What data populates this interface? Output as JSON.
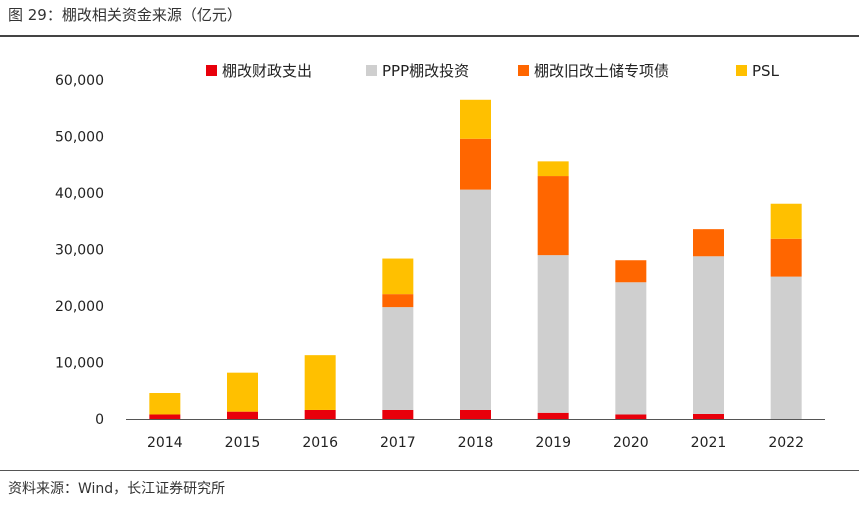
{
  "header": {
    "title": "图 29：棚改相关资金来源（亿元）"
  },
  "footer": {
    "source": "资料来源：Wind，长江证券研究所"
  },
  "chart_data": {
    "type": "bar",
    "stacked": true,
    "title": "图 29：棚改相关资金来源（亿元）",
    "xlabel": "",
    "ylabel": "",
    "ylim": [
      0,
      60000
    ],
    "yticks": [
      0,
      10000,
      20000,
      30000,
      40000,
      50000,
      60000
    ],
    "ytick_labels": [
      "0",
      "10,000",
      "20,000",
      "30,000",
      "40,000",
      "50,000",
      "60,000"
    ],
    "categories": [
      "2014",
      "2015",
      "2016",
      "2017",
      "2018",
      "2019",
      "2020",
      "2021",
      "2022"
    ],
    "series": [
      {
        "name": "棚改财政支出",
        "color": "#e8000b",
        "values": [
          800,
          1300,
          1600,
          1600,
          1600,
          1100,
          800,
          900,
          0
        ]
      },
      {
        "name": "PPP棚改投资",
        "color": "#cfcfcf",
        "values": [
          0,
          0,
          0,
          18200,
          39000,
          27900,
          23400,
          27900,
          25200
        ]
      },
      {
        "name": "棚改旧改土储专项债",
        "color": "#ff6600",
        "values": [
          0,
          0,
          0,
          2300,
          9000,
          14000,
          3900,
          4800,
          6700
        ]
      },
      {
        "name": "PSL",
        "color": "#ffc000",
        "values": [
          3800,
          6900,
          9700,
          6300,
          6900,
          2600,
          0,
          0,
          6200
        ]
      }
    ],
    "legend_position": "top",
    "grid": false
  }
}
